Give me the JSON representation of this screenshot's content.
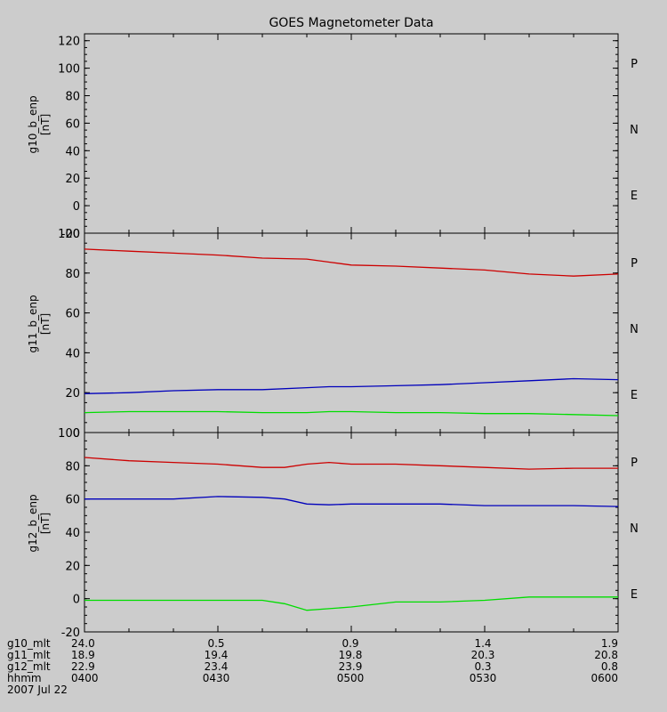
{
  "title": "GOES Magnetometer Data",
  "colors": {
    "P": "#cc0000",
    "N": "#00dd00",
    "E": "#0000bb",
    "axes": "#000000",
    "background": "#cccccc"
  },
  "chart_data": [
    {
      "type": "line",
      "ylabel": "g10_b_enp",
      "yunit": "[nT]",
      "ylim": [
        -20,
        125
      ],
      "yticks": [
        -20,
        0,
        20,
        40,
        60,
        80,
        100,
        120
      ],
      "legend": [
        "P",
        "N",
        "E"
      ],
      "series": []
    },
    {
      "type": "line",
      "ylabel": "g11_b_enp",
      "yunit": "[nT]",
      "ylim": [
        0,
        100
      ],
      "yticks": [
        0,
        20,
        40,
        60,
        80,
        100
      ],
      "legend": [
        "P",
        "N",
        "E"
      ],
      "x_minutes": [
        0,
        10,
        20,
        30,
        40,
        50,
        55,
        60,
        70,
        80,
        90,
        100,
        110,
        120
      ],
      "series": [
        {
          "name": "P",
          "values": [
            92,
            91,
            90,
            89,
            87.5,
            87,
            85.5,
            84,
            83.5,
            82.5,
            81.5,
            79.5,
            78.5,
            79.5
          ]
        },
        {
          "name": "N",
          "values": [
            10,
            10.5,
            10.5,
            10.5,
            10,
            10,
            10.5,
            10.5,
            10,
            10,
            9.5,
            9.5,
            9,
            8.5
          ]
        },
        {
          "name": "E",
          "values": [
            19.5,
            20,
            21,
            21.5,
            21.5,
            22.5,
            23,
            23,
            23.5,
            24,
            25,
            26,
            27,
            26.5
          ]
        }
      ]
    },
    {
      "type": "line",
      "ylabel": "g12_b_enp",
      "yunit": "[nT]",
      "ylim": [
        -20,
        100
      ],
      "yticks": [
        -20,
        0,
        20,
        40,
        60,
        80,
        100
      ],
      "legend": [
        "P",
        "N",
        "E"
      ],
      "x_minutes": [
        0,
        10,
        20,
        30,
        40,
        45,
        50,
        55,
        60,
        70,
        80,
        90,
        100,
        110,
        120
      ],
      "series": [
        {
          "name": "P",
          "values": [
            85,
            83,
            82,
            81,
            79,
            79,
            81,
            82,
            81,
            81,
            80,
            79,
            78,
            78.5,
            78.5
          ]
        },
        {
          "name": "N",
          "values": [
            -1,
            -1,
            -1,
            -1,
            -1,
            -3,
            -7,
            -6,
            -5,
            -2,
            -2,
            -1,
            1,
            1,
            1
          ]
        },
        {
          "name": "E",
          "values": [
            60,
            60,
            60,
            61.5,
            61,
            60,
            57,
            56.5,
            57,
            57,
            57,
            56,
            56,
            56,
            55.5
          ]
        }
      ]
    }
  ],
  "footer": {
    "rows": [
      {
        "label": "g10_mlt",
        "values": [
          "24.0",
          "0.5",
          "0.9",
          "1.4",
          "1.9"
        ]
      },
      {
        "label": "g11_mlt",
        "values": [
          "18.9",
          "19.4",
          "19.8",
          "20.3",
          "20.8"
        ]
      },
      {
        "label": "g12_mlt",
        "values": [
          "22.9",
          "23.4",
          "23.9",
          "0.3",
          "0.8"
        ]
      },
      {
        "label": "hhmm",
        "values": [
          "0400",
          "0430",
          "0500",
          "0530",
          "0600"
        ]
      }
    ],
    "date": "2007 Jul 22"
  }
}
